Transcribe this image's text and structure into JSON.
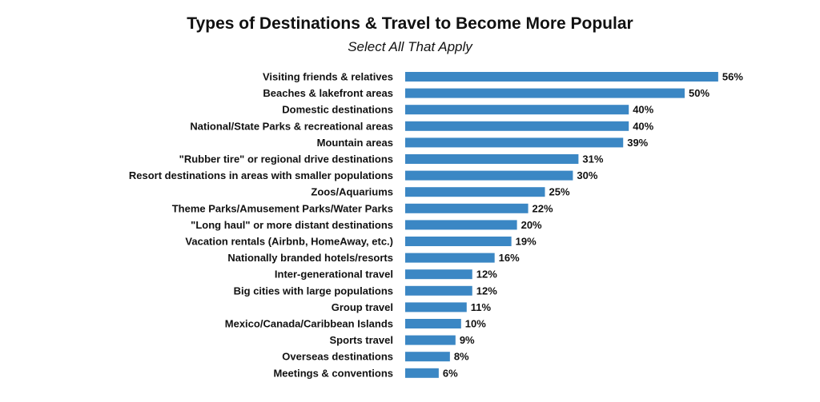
{
  "chart_data": {
    "type": "bar",
    "orientation": "horizontal",
    "title": "Types of Destinations & Travel to Become More Popular",
    "subtitle": "Select All That Apply",
    "value_suffix": "%",
    "bar_color": "#3B87C4",
    "xlim": [
      0,
      56
    ],
    "grid": false,
    "categories": [
      "Visiting friends & relatives",
      "Beaches & lakefront areas",
      "Domestic destinations",
      "National/State Parks & recreational areas",
      "Mountain areas",
      "\"Rubber tire\" or regional drive destinations",
      "Resort destinations in areas with smaller populations",
      "Zoos/Aquariums",
      "Theme Parks/Amusement Parks/Water Parks",
      "\"Long haul\" or more distant destinations",
      "Vacation rentals (Airbnb, HomeAway, etc.)",
      "Nationally branded hotels/resorts",
      "Inter-generational travel",
      "Big cities with large populations",
      "Group travel",
      "Mexico/Canada/Caribbean Islands",
      "Sports travel",
      "Overseas destinations",
      "Meetings & conventions"
    ],
    "values": [
      56,
      50,
      40,
      40,
      39,
      31,
      30,
      25,
      22,
      20,
      19,
      16,
      12,
      12,
      11,
      10,
      9,
      8,
      6
    ]
  }
}
